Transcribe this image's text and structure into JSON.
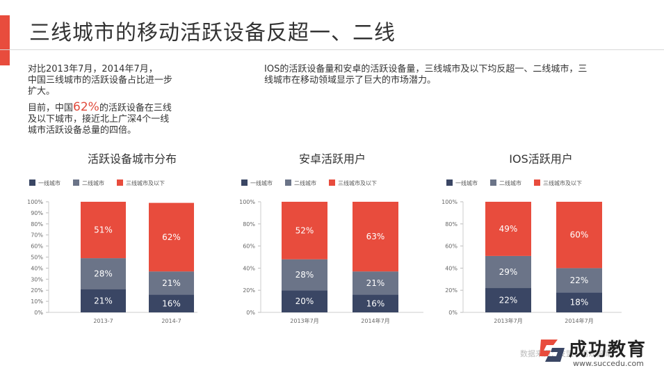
{
  "colors": {
    "accent": "#e84c3d",
    "tier1": "#3a4664",
    "tier2": "#6b7488",
    "tier3": "#e84c3d"
  },
  "slide": {
    "title": "三线城市的移动活跃设备反超一、二线"
  },
  "intro_left": {
    "line1": "对比2013年7月，2014年7月，",
    "line2": "中国三线城市的活跃设备占比进一步",
    "line3": "扩大。",
    "p2_prefix": "目前，中国",
    "p2_highlight": "62%",
    "p2_suffix": "的活跃设备在三线",
    "line5": "及以下城市，接近北上广深4个一线",
    "line6": "城市活跃设备总量的四倍。"
  },
  "intro_right": {
    "line1": "IOS的活跃设备量和安卓的活跃设备量，三线城市及以下均反超一、二线城市，三",
    "line2": "线城市在移动领域显示了巨大的市场潜力。"
  },
  "watermark": "数据来源：友盟  ·  易观智库",
  "logo": {
    "name": "成功教育",
    "url": "www.succedu.com"
  },
  "chart_data": [
    {
      "type": "bar",
      "stacked": true,
      "title": "活跃设备城市分布",
      "legend": [
        "一线城市",
        "二线城市",
        "三线城市及以下"
      ],
      "categories": [
        "2013-7",
        "2014-7"
      ],
      "yticks": [
        "100%",
        "90%",
        "80%",
        "70%",
        "60%",
        "50%",
        "40%",
        "30%",
        "20%",
        "10%",
        "0%"
      ],
      "series": [
        {
          "name": "一线城市",
          "values": [
            21,
            16
          ],
          "labels": [
            "21%",
            "16%"
          ]
        },
        {
          "name": "二线城市",
          "values": [
            28,
            21
          ],
          "labels": [
            "28%",
            "21%"
          ]
        },
        {
          "name": "三线城市及以下",
          "values": [
            51,
            62
          ],
          "labels": [
            "51%",
            "62%"
          ]
        }
      ],
      "ylim": [
        0,
        100
      ]
    },
    {
      "type": "bar",
      "stacked": true,
      "title": "安卓活跃用户",
      "legend": [
        "一线城市",
        "二线城市",
        "三线城市及以下"
      ],
      "categories": [
        "2013年7月",
        "2014年7月"
      ],
      "yticks": [
        "100%",
        "80%",
        "60%",
        "40%",
        "20%",
        "0%"
      ],
      "series": [
        {
          "name": "一线城市",
          "values": [
            20,
            16
          ],
          "labels": [
            "20%",
            "16%"
          ]
        },
        {
          "name": "二线城市",
          "values": [
            28,
            21
          ],
          "labels": [
            "28%",
            "21%"
          ]
        },
        {
          "name": "三线城市及以下",
          "values": [
            52,
            63
          ],
          "labels": [
            "52%",
            "63%"
          ]
        }
      ],
      "ylim": [
        0,
        100
      ]
    },
    {
      "type": "bar",
      "stacked": true,
      "title": "IOS活跃用户",
      "legend": [
        "一线城市",
        "二线城市",
        "三线城市及以下"
      ],
      "categories": [
        "2013年7月",
        "2014年7月"
      ],
      "yticks": [
        "100%",
        "80%",
        "60%",
        "40%",
        "20%",
        "0%"
      ],
      "series": [
        {
          "name": "一线城市",
          "values": [
            22,
            18
          ],
          "labels": [
            "22%",
            "18%"
          ]
        },
        {
          "name": "二线城市",
          "values": [
            29,
            22
          ],
          "labels": [
            "29%",
            "22%"
          ]
        },
        {
          "name": "三线城市及以下",
          "values": [
            49,
            60
          ],
          "labels": [
            "49%",
            "60%"
          ]
        }
      ],
      "ylim": [
        0,
        100
      ]
    }
  ]
}
